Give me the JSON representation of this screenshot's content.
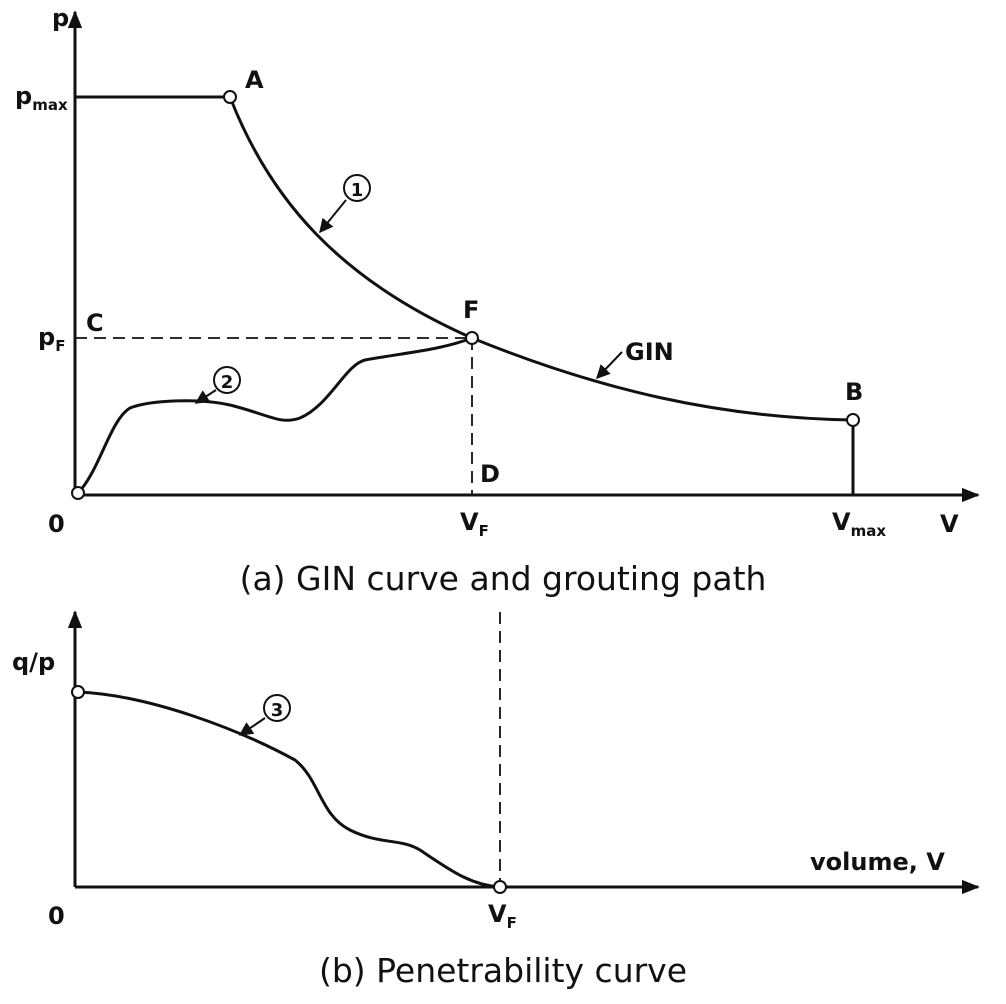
{
  "panel_a": {
    "y_axis_label": "p",
    "x_axis_label": "V",
    "origin": "0",
    "p_max": {
      "main": "p",
      "sub": "max"
    },
    "p_F": {
      "main": "p",
      "sub": "F"
    },
    "V_F": {
      "main": "V",
      "sub": "F"
    },
    "V_max": {
      "main": "V",
      "sub": "max"
    },
    "points": {
      "A": "A",
      "B": "B",
      "C": "C",
      "D": "D",
      "F": "F"
    },
    "curve_labels": {
      "gin": "GIN",
      "one": "1",
      "two": "2"
    },
    "caption": "(a) GIN curve and grouting path"
  },
  "panel_b": {
    "y_axis_label": "q/p",
    "x_axis_label": "volume, V",
    "origin": "0",
    "V_F": {
      "main": "V",
      "sub": "F"
    },
    "curve_label": "3",
    "caption": "(b) Penetrability curve"
  }
}
